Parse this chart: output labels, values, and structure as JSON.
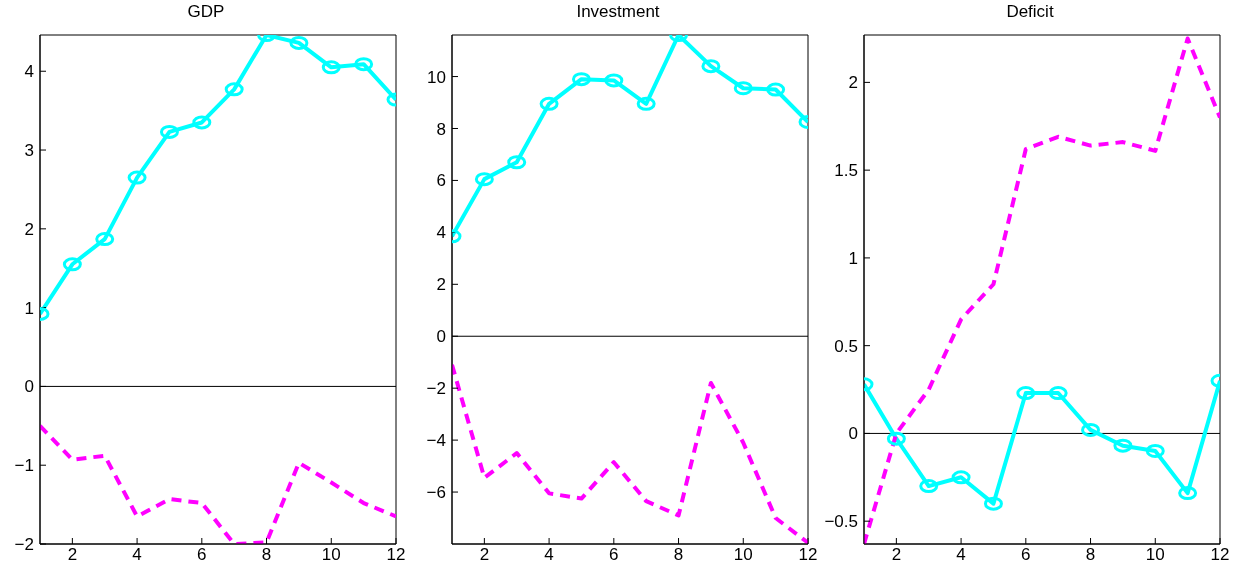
{
  "chart_data": [
    {
      "type": "line",
      "title": "GDP",
      "x": [
        1,
        2,
        3,
        4,
        5,
        6,
        7,
        8,
        9,
        10,
        11,
        12
      ],
      "xlim": [
        1,
        12
      ],
      "xticks": [
        2,
        4,
        6,
        8,
        10,
        12
      ],
      "ylim": [
        -2,
        4.46
      ],
      "yticks": [
        -2,
        -1,
        0,
        1,
        2,
        3,
        4
      ],
      "ref_lines": [
        {
          "axis": "y",
          "value": 0,
          "color": "#000000"
        }
      ],
      "series": [
        {
          "color": "#00ffff",
          "marker": "circle",
          "line_style": "solid",
          "values": [
            0.92,
            1.55,
            1.87,
            2.65,
            3.23,
            3.35,
            3.77,
            4.46,
            4.36,
            4.05,
            4.09,
            3.64
          ]
        },
        {
          "color": "#ff00ff",
          "marker": "none",
          "line_style": "dashed",
          "values": [
            -0.5,
            -0.93,
            -0.88,
            -1.65,
            -1.43,
            -1.48,
            -2.0,
            -1.98,
            -0.97,
            -1.22,
            -1.48,
            -1.65
          ]
        }
      ]
    },
    {
      "type": "line",
      "title": "Investment",
      "x": [
        1,
        2,
        3,
        4,
        5,
        6,
        7,
        8,
        9,
        10,
        11,
        12
      ],
      "xlim": [
        1,
        12
      ],
      "xticks": [
        2,
        4,
        6,
        8,
        10,
        12
      ],
      "ylim": [
        -8,
        11.6
      ],
      "yticks": [
        -6,
        -4,
        -2,
        0,
        2,
        4,
        6,
        8,
        10
      ],
      "ref_lines": [
        {
          "axis": "y",
          "value": 0,
          "color": "#000000"
        }
      ],
      "series": [
        {
          "color": "#00ffff",
          "marker": "circle",
          "line_style": "solid",
          "values": [
            3.85,
            6.05,
            6.7,
            8.95,
            9.9,
            9.85,
            8.95,
            11.6,
            10.4,
            9.55,
            9.5,
            8.25
          ]
        },
        {
          "color": "#ff00ff",
          "marker": "none",
          "line_style": "dashed",
          "values": [
            -1.1,
            -5.45,
            -4.5,
            -6.05,
            -6.25,
            -4.85,
            -6.35,
            -6.9,
            -1.8,
            -4.1,
            -7.0,
            -7.95
          ]
        }
      ]
    },
    {
      "type": "line",
      "title": "Deficit",
      "x": [
        1,
        2,
        3,
        4,
        5,
        6,
        7,
        8,
        9,
        10,
        11,
        12
      ],
      "xlim": [
        1,
        12
      ],
      "xticks": [
        2,
        4,
        6,
        8,
        10,
        12
      ],
      "ylim": [
        -0.63,
        2.27
      ],
      "yticks": [
        -0.5,
        0,
        0.5,
        1,
        1.5,
        2
      ],
      "ref_lines": [
        {
          "axis": "y",
          "value": 0,
          "color": "#000000"
        }
      ],
      "series": [
        {
          "color": "#00ffff",
          "marker": "circle",
          "line_style": "solid",
          "values": [
            0.28,
            -0.03,
            -0.3,
            -0.25,
            -0.4,
            0.23,
            0.23,
            0.02,
            -0.07,
            -0.1,
            -0.34,
            0.3
          ]
        },
        {
          "color": "#ff00ff",
          "marker": "none",
          "line_style": "dashed",
          "values": [
            -0.63,
            0.0,
            0.25,
            0.65,
            0.85,
            1.62,
            1.69,
            1.64,
            1.66,
            1.61,
            2.25,
            1.8
          ]
        }
      ]
    }
  ]
}
